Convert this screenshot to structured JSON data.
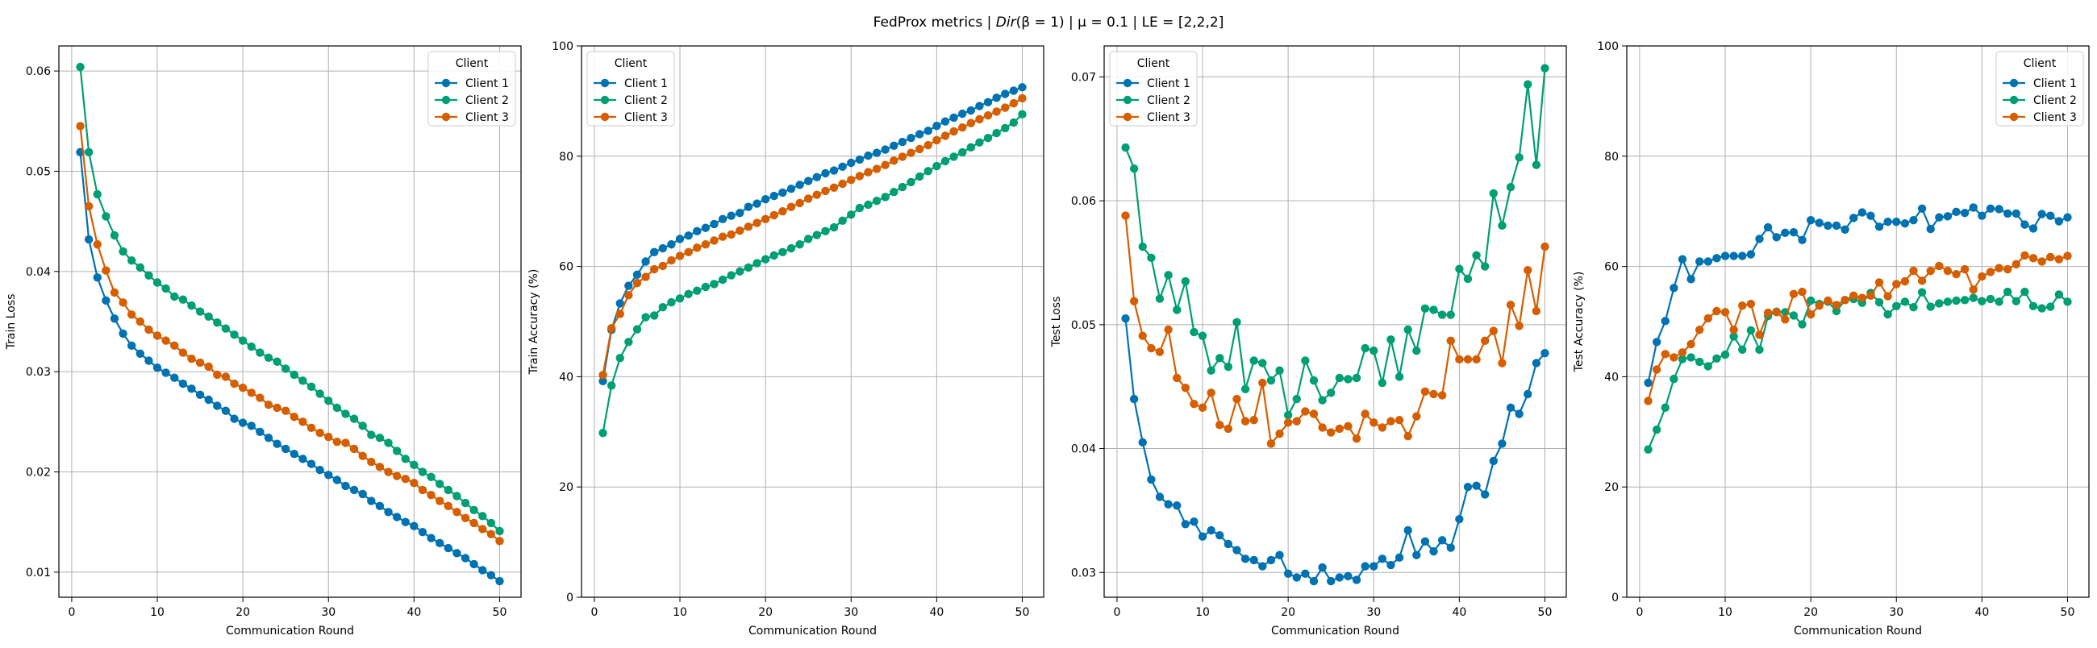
{
  "figure": {
    "suptitle_prefix": "FedProx metrics | ",
    "suptitle_dir": "Dir",
    "suptitle_beta": "(β = 1)",
    "suptitle_suffix": " | μ = 0.1 | LE = [2,2,2]"
  },
  "colors": {
    "Client 1": "#0072B2",
    "Client 2": "#009E73",
    "Client 3": "#D55E00"
  },
  "chart_data": [
    {
      "type": "line",
      "xlabel": "Communication Round",
      "ylabel": "Train Loss",
      "xlim": [
        -1.5,
        52.5
      ],
      "ylim": [
        0.0075,
        0.0625
      ],
      "xticks": [
        "0",
        "10",
        "20",
        "30",
        "40",
        "50"
      ],
      "yticks": [
        "0.01",
        "0.02",
        "0.03",
        "0.04",
        "0.05",
        "0.06"
      ],
      "grid": true,
      "legend": {
        "title": "Client",
        "position": "top-right"
      },
      "x": [
        1,
        2,
        3,
        4,
        5,
        6,
        7,
        8,
        9,
        10,
        11,
        12,
        13,
        14,
        15,
        16,
        17,
        18,
        19,
        20,
        21,
        22,
        23,
        24,
        25,
        26,
        27,
        28,
        29,
        30,
        31,
        32,
        33,
        34,
        35,
        36,
        37,
        38,
        39,
        40,
        41,
        42,
        43,
        44,
        45,
        46,
        47,
        48,
        49,
        50
      ],
      "series": [
        {
          "name": "Client 1",
          "values": [
            0.0519,
            0.0432,
            0.0394,
            0.0371,
            0.0353,
            0.0338,
            0.0326,
            0.0318,
            0.0311,
            0.0304,
            0.0299,
            0.0294,
            0.0288,
            0.0283,
            0.0277,
            0.0272,
            0.0266,
            0.0261,
            0.0253,
            0.0249,
            0.0246,
            0.024,
            0.0234,
            0.0228,
            0.0223,
            0.0218,
            0.0213,
            0.0208,
            0.0202,
            0.0197,
            0.0192,
            0.0186,
            0.0182,
            0.0178,
            0.0171,
            0.0166,
            0.016,
            0.0155,
            0.015,
            0.0146,
            0.014,
            0.0134,
            0.0129,
            0.0124,
            0.0119,
            0.0114,
            0.0108,
            0.0102,
            0.0097,
            0.0091
          ]
        },
        {
          "name": "Client 2",
          "values": [
            0.0604,
            0.0519,
            0.0477,
            0.0455,
            0.0436,
            0.042,
            0.0411,
            0.0404,
            0.0396,
            0.0389,
            0.0383,
            0.0375,
            0.0372,
            0.0366,
            0.036,
            0.0355,
            0.0349,
            0.0343,
            0.0337,
            0.0331,
            0.0325,
            0.0319,
            0.0314,
            0.031,
            0.0303,
            0.0297,
            0.0291,
            0.0285,
            0.0278,
            0.0271,
            0.0264,
            0.0258,
            0.0253,
            0.0246,
            0.0237,
            0.0234,
            0.0229,
            0.0221,
            0.0213,
            0.0207,
            0.02,
            0.0195,
            0.0188,
            0.0182,
            0.0176,
            0.0169,
            0.0162,
            0.0156,
            0.0149,
            0.0141
          ]
        },
        {
          "name": "Client 3",
          "values": [
            0.0545,
            0.0465,
            0.0427,
            0.0401,
            0.0379,
            0.0369,
            0.0357,
            0.035,
            0.0342,
            0.0336,
            0.0331,
            0.0326,
            0.0319,
            0.0313,
            0.0309,
            0.0305,
            0.0297,
            0.0295,
            0.0288,
            0.0284,
            0.0279,
            0.0274,
            0.0267,
            0.0264,
            0.0261,
            0.0255,
            0.025,
            0.0244,
            0.0239,
            0.0235,
            0.023,
            0.0229,
            0.0223,
            0.0216,
            0.021,
            0.0205,
            0.02,
            0.0196,
            0.0193,
            0.0189,
            0.0182,
            0.0177,
            0.0171,
            0.0166,
            0.016,
            0.0154,
            0.0149,
            0.0143,
            0.0138,
            0.0131
          ]
        }
      ]
    },
    {
      "type": "line",
      "xlabel": "Communication Round",
      "ylabel": "Train Accuracy (%)",
      "xlim": [
        -1.5,
        52.5
      ],
      "ylim": [
        0,
        100
      ],
      "xticks": [
        "0",
        "10",
        "20",
        "30",
        "40",
        "50"
      ],
      "yticks": [
        "0",
        "20",
        "40",
        "60",
        "80",
        "100"
      ],
      "grid": true,
      "legend": {
        "title": "Client",
        "position": "top-left"
      },
      "x": [
        1,
        2,
        3,
        4,
        5,
        6,
        7,
        8,
        9,
        10,
        11,
        12,
        13,
        14,
        15,
        16,
        17,
        18,
        19,
        20,
        21,
        22,
        23,
        24,
        25,
        26,
        27,
        28,
        29,
        30,
        31,
        32,
        33,
        34,
        35,
        36,
        37,
        38,
        39,
        40,
        41,
        42,
        43,
        44,
        45,
        46,
        47,
        48,
        49,
        50
      ],
      "series": [
        {
          "name": "Client 1",
          "values": [
            39.2,
            48.5,
            53.3,
            56.5,
            58.5,
            60.9,
            62.6,
            63.3,
            64.0,
            65.0,
            65.6,
            66.4,
            67.0,
            67.7,
            68.6,
            69.2,
            69.7,
            70.8,
            71.4,
            72.2,
            72.8,
            73.4,
            74.1,
            74.8,
            75.5,
            76.2,
            76.9,
            77.4,
            78.1,
            78.8,
            79.4,
            80.1,
            80.6,
            81.2,
            81.9,
            82.6,
            83.3,
            84.0,
            84.6,
            85.5,
            86.3,
            87.0,
            87.7,
            88.3,
            89.1,
            89.8,
            90.6,
            91.3,
            91.9,
            92.5
          ]
        },
        {
          "name": "Client 2",
          "values": [
            29.8,
            38.4,
            43.4,
            46.3,
            48.6,
            50.8,
            51.1,
            52.6,
            53.5,
            54.2,
            55.0,
            55.6,
            56.3,
            56.8,
            57.6,
            58.4,
            59.1,
            59.8,
            60.6,
            61.3,
            62.0,
            62.6,
            63.3,
            64.0,
            65.0,
            65.7,
            66.4,
            67.1,
            68.3,
            69.4,
            70.6,
            71.2,
            71.9,
            72.6,
            73.5,
            74.4,
            75.3,
            76.3,
            77.3,
            78.2,
            79.1,
            79.9,
            80.7,
            81.6,
            82.5,
            83.3,
            84.2,
            85.1,
            86.1,
            87.6
          ]
        },
        {
          "name": "Client 3",
          "values": [
            40.3,
            48.8,
            51.4,
            54.8,
            57.0,
            58.1,
            59.5,
            60.1,
            61.1,
            61.9,
            62.6,
            63.4,
            64.0,
            64.7,
            65.4,
            65.8,
            66.5,
            67.2,
            67.9,
            68.6,
            69.3,
            70.0,
            70.8,
            71.5,
            72.3,
            73.0,
            73.7,
            74.3,
            75.0,
            75.7,
            76.4,
            77.1,
            77.7,
            78.4,
            79.2,
            79.9,
            80.6,
            81.3,
            82.0,
            82.9,
            83.7,
            84.5,
            85.2,
            86.0,
            86.7,
            87.4,
            88.1,
            88.8,
            89.6,
            90.5
          ]
        }
      ]
    },
    {
      "type": "line",
      "xlabel": "Communication Round",
      "ylabel": "Test Loss",
      "xlim": [
        -1.5,
        52.5
      ],
      "ylim": [
        0.028,
        0.0725
      ],
      "xticks": [
        "0",
        "10",
        "20",
        "30",
        "40",
        "50"
      ],
      "yticks": [
        "0.03",
        "0.04",
        "0.05",
        "0.06",
        "0.07"
      ],
      "grid": true,
      "legend": {
        "title": "Client",
        "position": "top-left"
      },
      "x": [
        1,
        2,
        3,
        4,
        5,
        6,
        7,
        8,
        9,
        10,
        11,
        12,
        13,
        14,
        15,
        16,
        17,
        18,
        19,
        20,
        21,
        22,
        23,
        24,
        25,
        26,
        27,
        28,
        29,
        30,
        31,
        32,
        33,
        34,
        35,
        36,
        37,
        38,
        39,
        40,
        41,
        42,
        43,
        44,
        45,
        46,
        47,
        48,
        49,
        50
      ],
      "series": [
        {
          "name": "Client 1",
          "values": [
            0.0505,
            0.044,
            0.0405,
            0.0375,
            0.0361,
            0.0355,
            0.0354,
            0.0339,
            0.0341,
            0.0329,
            0.0334,
            0.033,
            0.0323,
            0.0318,
            0.0311,
            0.031,
            0.0305,
            0.031,
            0.0314,
            0.0299,
            0.0296,
            0.0299,
            0.0293,
            0.0304,
            0.0293,
            0.0296,
            0.0297,
            0.0294,
            0.0305,
            0.0305,
            0.0311,
            0.0306,
            0.0312,
            0.0334,
            0.0314,
            0.0325,
            0.0317,
            0.0326,
            0.032,
            0.0343,
            0.0369,
            0.037,
            0.0363,
            0.039,
            0.0404,
            0.0433,
            0.0428,
            0.0444,
            0.0469,
            0.0477
          ]
        },
        {
          "name": "Client 2",
          "values": [
            0.0643,
            0.0626,
            0.0563,
            0.0554,
            0.0521,
            0.054,
            0.0512,
            0.0535,
            0.0494,
            0.0491,
            0.0463,
            0.0473,
            0.0466,
            0.0502,
            0.0448,
            0.0471,
            0.0469,
            0.0455,
            0.0463,
            0.0427,
            0.044,
            0.0471,
            0.0455,
            0.0439,
            0.0445,
            0.0457,
            0.0456,
            0.0457,
            0.0481,
            0.0479,
            0.0453,
            0.0488,
            0.0458,
            0.0496,
            0.0479,
            0.0513,
            0.0512,
            0.0508,
            0.0508,
            0.0545,
            0.0537,
            0.0556,
            0.0547,
            0.0606,
            0.058,
            0.0611,
            0.0635,
            0.0694,
            0.0629,
            0.0707
          ]
        },
        {
          "name": "Client 3",
          "values": [
            0.0588,
            0.0519,
            0.0491,
            0.0481,
            0.0478,
            0.0496,
            0.0457,
            0.0449,
            0.0436,
            0.0433,
            0.0445,
            0.0419,
            0.0416,
            0.044,
            0.0422,
            0.0423,
            0.0453,
            0.0404,
            0.0412,
            0.0421,
            0.0422,
            0.043,
            0.0428,
            0.0417,
            0.0413,
            0.0416,
            0.0418,
            0.0408,
            0.0428,
            0.0421,
            0.0417,
            0.0422,
            0.0423,
            0.041,
            0.0426,
            0.0446,
            0.0444,
            0.0443,
            0.0487,
            0.0472,
            0.0472,
            0.0472,
            0.0487,
            0.0495,
            0.0469,
            0.0516,
            0.0499,
            0.0544,
            0.0511,
            0.0563
          ]
        }
      ]
    },
    {
      "type": "line",
      "xlabel": "Communication Round",
      "ylabel": "Test Accuracy (%)",
      "xlim": [
        -1.5,
        52.5
      ],
      "ylim": [
        0,
        100
      ],
      "xticks": [
        "0",
        "10",
        "20",
        "30",
        "40",
        "50"
      ],
      "yticks": [
        "0",
        "20",
        "40",
        "60",
        "80",
        "100"
      ],
      "grid": true,
      "legend": {
        "title": "Client",
        "position": "top-right"
      },
      "x": [
        1,
        2,
        3,
        4,
        5,
        6,
        7,
        8,
        9,
        10,
        11,
        12,
        13,
        14,
        15,
        16,
        17,
        18,
        19,
        20,
        21,
        22,
        23,
        24,
        25,
        26,
        27,
        28,
        29,
        30,
        31,
        32,
        33,
        34,
        35,
        36,
        37,
        38,
        39,
        40,
        41,
        42,
        43,
        44,
        45,
        46,
        47,
        48,
        49,
        50
      ],
      "series": [
        {
          "name": "Client 1",
          "values": [
            38.9,
            46.3,
            50.1,
            56.1,
            61.3,
            57.7,
            60.9,
            60.9,
            61.5,
            61.9,
            61.9,
            61.9,
            62.2,
            65.0,
            67.1,
            65.3,
            66.1,
            66.2,
            64.8,
            68.4,
            67.9,
            67.4,
            67.4,
            66.7,
            68.8,
            69.8,
            69.2,
            67.2,
            68.1,
            68.1,
            67.8,
            68.4,
            70.5,
            66.8,
            68.9,
            69.1,
            69.9,
            69.7,
            70.7,
            69.2,
            70.5,
            70.4,
            69.6,
            69.6,
            67.6,
            66.9,
            69.5,
            69.2,
            68.2,
            68.9
          ]
        },
        {
          "name": "Client 2",
          "values": [
            26.8,
            30.4,
            34.4,
            39.6,
            43.2,
            43.5,
            42.7,
            41.9,
            43.3,
            44.0,
            47.3,
            44.9,
            48.4,
            44.9,
            51.0,
            51.8,
            51.7,
            51.1,
            49.5,
            53.8,
            53.2,
            53.6,
            51.9,
            53.9,
            54.1,
            53.4,
            55.2,
            53.5,
            51.3,
            52.8,
            53.6,
            52.6,
            55.3,
            52.7,
            53.3,
            53.6,
            53.8,
            53.9,
            54.3,
            53.7,
            54.1,
            53.6,
            55.4,
            53.7,
            55.4,
            52.8,
            52.4,
            52.7,
            54.9,
            53.6
          ]
        },
        {
          "name": "Client 3",
          "values": [
            35.6,
            41.3,
            44.1,
            43.5,
            44.4,
            45.9,
            48.5,
            50.6,
            51.9,
            51.7,
            48.5,
            52.9,
            53.2,
            47.6,
            51.6,
            51.7,
            50.4,
            55.0,
            55.4,
            51.3,
            52.9,
            53.8,
            53.0,
            53.9,
            54.7,
            54.3,
            54.7,
            57.1,
            54.6,
            56.8,
            57.3,
            59.2,
            57.4,
            59.2,
            60.1,
            59.2,
            58.6,
            59.5,
            55.8,
            58.2,
            59.0,
            59.7,
            59.5,
            60.4,
            62.0,
            61.5,
            60.9,
            61.7,
            61.3,
            61.9
          ]
        }
      ]
    }
  ]
}
